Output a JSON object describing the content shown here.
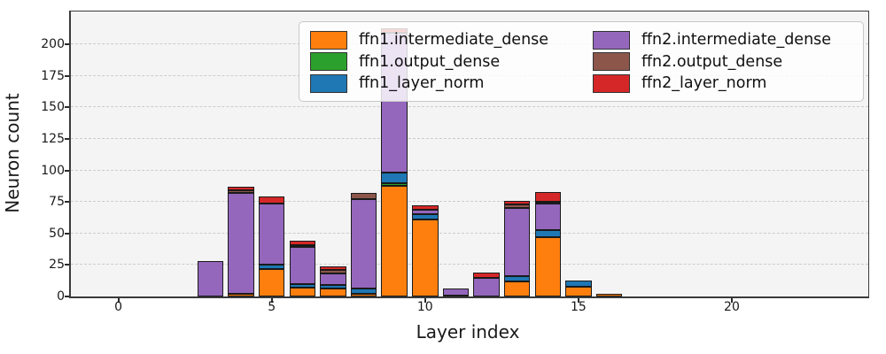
{
  "figure": {
    "background": "#ffffff",
    "plot_background": "#f4f4f5",
    "grid_color": "#cccccc",
    "spine_color": "#3a3a3a",
    "bar_edge_color": "#1a1a1a"
  },
  "chart_data": {
    "type": "bar",
    "stacked": true,
    "title": "",
    "xlabel": "Layer index",
    "ylabel": "Neuron count",
    "grid": "horizontal dashed",
    "legend_position": "upper center, 2 columns",
    "categories": [
      0,
      1,
      2,
      3,
      4,
      5,
      6,
      7,
      8,
      9,
      10,
      11,
      12,
      13,
      14,
      15,
      16,
      17,
      18,
      19,
      20,
      21,
      22,
      23
    ],
    "xticks": [
      0,
      5,
      10,
      15,
      20
    ],
    "yticks": [
      0,
      25,
      50,
      75,
      100,
      125,
      150,
      175,
      200
    ],
    "xlim": [
      -1.55,
      24.45
    ],
    "ylim": [
      0,
      226
    ],
    "bar_width": 0.85,
    "series": [
      {
        "name": "ffn1.intermediate_dense",
        "color": "#ff7f0e",
        "values": [
          0,
          0,
          0,
          0,
          2,
          22,
          7,
          6,
          2,
          88,
          61,
          1,
          0,
          12,
          47,
          8,
          2,
          0,
          0,
          0,
          0,
          0,
          0,
          0
        ]
      },
      {
        "name": "ffn1.output_dense",
        "color": "#2ca02c",
        "values": [
          0,
          0,
          0,
          0,
          0,
          0,
          0,
          0,
          0,
          2,
          0,
          0,
          0,
          0,
          0,
          0,
          0,
          0,
          0,
          0,
          0,
          0,
          0,
          0
        ]
      },
      {
        "name": "ffn1_layer_norm",
        "color": "#1f77b4",
        "values": [
          0,
          0,
          0,
          0,
          0,
          3,
          3,
          3,
          4,
          8,
          4,
          0,
          0,
          4,
          6,
          5,
          0,
          0,
          0,
          0,
          0,
          0,
          0,
          0
        ]
      },
      {
        "name": "ffn2.intermediate_dense",
        "color": "#9467bd",
        "values": [
          0,
          0,
          0,
          28,
          80,
          49,
          29,
          9,
          71,
          111,
          4,
          5,
          15,
          54,
          21,
          0,
          0,
          0,
          0,
          0,
          0,
          0,
          0,
          0
        ]
      },
      {
        "name": "ffn2.output_dense",
        "color": "#8c564b",
        "values": [
          0,
          0,
          0,
          0,
          2,
          0,
          2,
          3,
          5,
          0,
          0,
          0,
          0,
          3,
          1,
          0,
          0,
          0,
          0,
          0,
          0,
          0,
          0,
          0
        ]
      },
      {
        "name": "ffn2_layer_norm",
        "color": "#d62728",
        "values": [
          0,
          0,
          0,
          0,
          3,
          5,
          3,
          3,
          0,
          4,
          3,
          0,
          4,
          3,
          8,
          0,
          0,
          0,
          0,
          0,
          0,
          0,
          0,
          0
        ]
      }
    ]
  }
}
